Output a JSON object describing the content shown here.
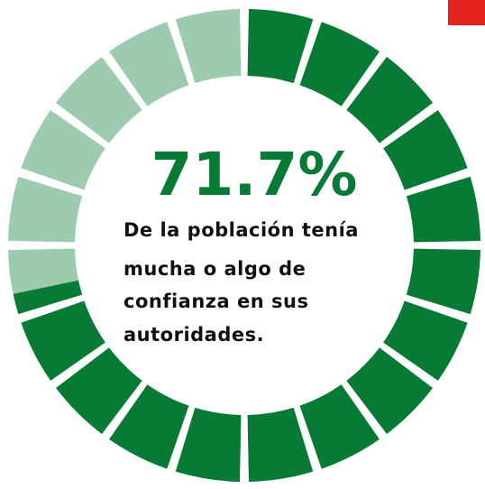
{
  "chart_data": {
    "type": "gauge",
    "value": 71.7,
    "value_label": "71.7%",
    "ylim": [
      0,
      100
    ],
    "description": [
      "De la población tenía",
      "mucha o algo de",
      "confianza en sus",
      "autoridades."
    ],
    "color": "#077a35",
    "track_color": "#9dcbb0",
    "accent_color": "#e3231e"
  }
}
